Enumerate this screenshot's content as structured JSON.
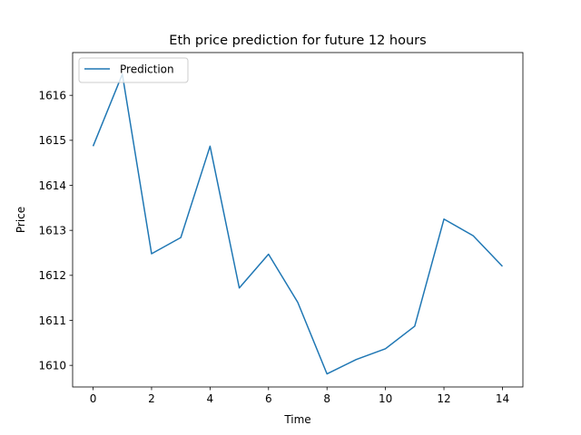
{
  "chart_data": {
    "type": "line",
    "title": "Eth price prediction for future 12 hours",
    "xlabel": "Time",
    "ylabel": "Price",
    "xlim": [
      -0.7,
      14.7
    ],
    "ylim": [
      1609.52,
      1616.95
    ],
    "xticks": [
      0,
      2,
      4,
      6,
      8,
      10,
      12,
      14
    ],
    "yticks": [
      1610,
      1611,
      1612,
      1613,
      1614,
      1615,
      1616
    ],
    "grid": false,
    "legend": {
      "position": "upper left"
    },
    "series": [
      {
        "name": "Prediction",
        "color": "#1f77b4",
        "x": [
          0,
          1,
          2,
          3,
          4,
          5,
          6,
          7,
          8,
          9,
          10,
          11,
          12,
          13,
          14
        ],
        "values": [
          1614.87,
          1616.47,
          1612.48,
          1612.84,
          1614.87,
          1611.72,
          1612.47,
          1611.4,
          1609.81,
          1610.13,
          1610.37,
          1610.87,
          1613.25,
          1612.88,
          1612.2
        ]
      }
    ]
  }
}
